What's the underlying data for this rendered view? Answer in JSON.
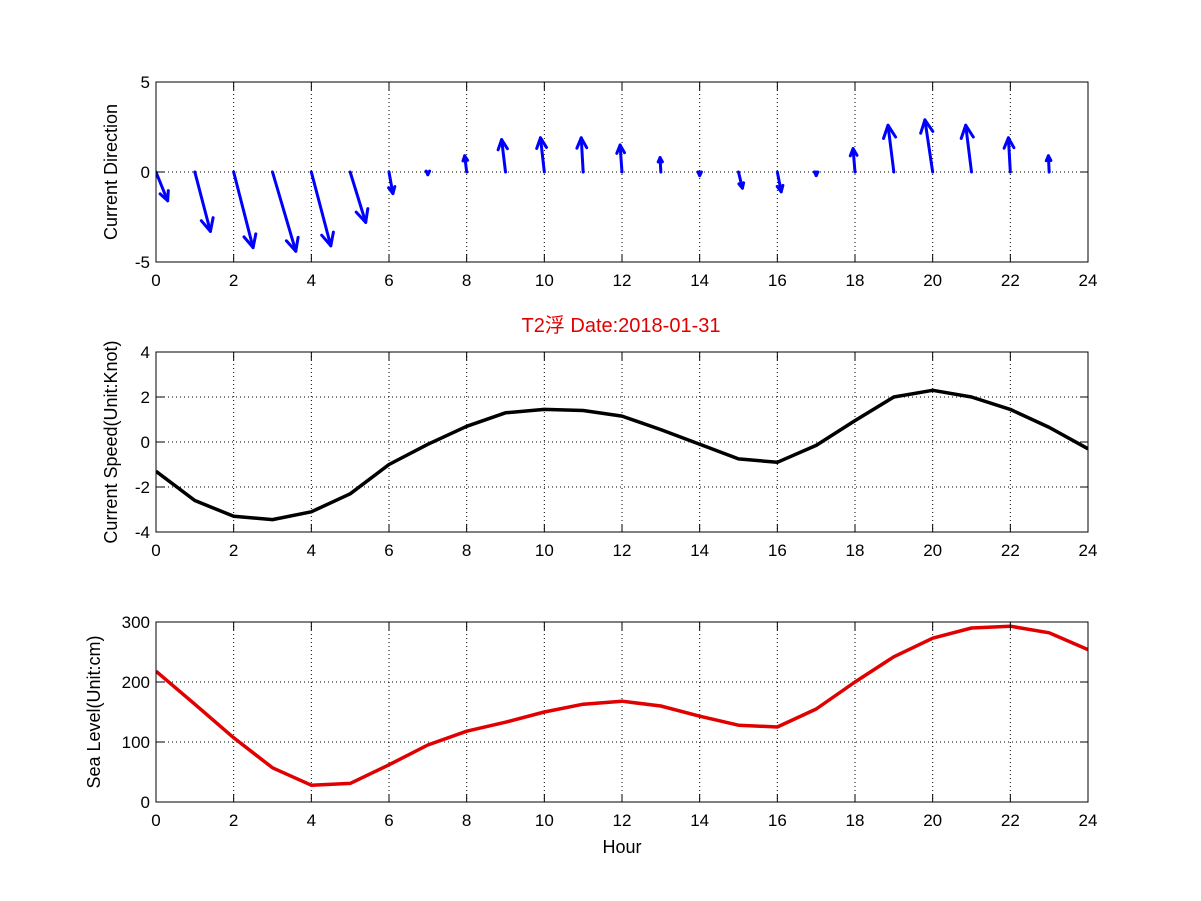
{
  "title": "T2浮    Date:2018-01-31",
  "colors": {
    "direction": "#0000ff",
    "speed": "#000000",
    "sea_level": "#e00000",
    "title": "#e00000"
  },
  "chart_data": [
    {
      "type": "quiver",
      "ylabel": "Current Direction",
      "xlabel": "",
      "xlim": [
        0,
        24
      ],
      "ylim": [
        -5,
        5
      ],
      "xticks": [
        0,
        2,
        4,
        6,
        8,
        10,
        12,
        14,
        16,
        18,
        20,
        22,
        24
      ],
      "yticks": [
        -5,
        0,
        5
      ],
      "grid": true,
      "vectors": [
        {
          "x": 0,
          "u": 0.3,
          "v": -1.6
        },
        {
          "x": 1,
          "u": 0.4,
          "v": -3.3
        },
        {
          "x": 2,
          "u": 0.5,
          "v": -4.2
        },
        {
          "x": 3,
          "u": 0.6,
          "v": -4.4
        },
        {
          "x": 4,
          "u": 0.5,
          "v": -4.1
        },
        {
          "x": 5,
          "u": 0.4,
          "v": -2.8
        },
        {
          "x": 6,
          "u": 0.1,
          "v": -1.2
        },
        {
          "x": 7,
          "u": 0.0,
          "v": -0.15
        },
        {
          "x": 8,
          "u": -0.05,
          "v": 0.9
        },
        {
          "x": 9,
          "u": -0.1,
          "v": 1.8
        },
        {
          "x": 10,
          "u": -0.1,
          "v": 1.9
        },
        {
          "x": 11,
          "u": -0.05,
          "v": 1.9
        },
        {
          "x": 12,
          "u": -0.05,
          "v": 1.5
        },
        {
          "x": 13,
          "u": -0.02,
          "v": 0.8
        },
        {
          "x": 14,
          "u": 0.0,
          "v": -0.2
        },
        {
          "x": 15,
          "u": 0.1,
          "v": -0.9
        },
        {
          "x": 16,
          "u": 0.1,
          "v": -1.1
        },
        {
          "x": 17,
          "u": 0.0,
          "v": -0.2
        },
        {
          "x": 18,
          "u": -0.05,
          "v": 1.3
        },
        {
          "x": 19,
          "u": -0.15,
          "v": 2.6
        },
        {
          "x": 20,
          "u": -0.2,
          "v": 2.9
        },
        {
          "x": 21,
          "u": -0.15,
          "v": 2.6
        },
        {
          "x": 22,
          "u": -0.05,
          "v": 1.9
        },
        {
          "x": 23,
          "u": -0.02,
          "v": 0.9
        }
      ]
    },
    {
      "type": "line",
      "ylabel": "Current Speed(Unit:Knot)",
      "xlabel": "",
      "xlim": [
        0,
        24
      ],
      "ylim": [
        -4,
        4
      ],
      "xticks": [
        0,
        2,
        4,
        6,
        8,
        10,
        12,
        14,
        16,
        18,
        20,
        22,
        24
      ],
      "yticks": [
        -4,
        -2,
        0,
        2,
        4
      ],
      "grid": true,
      "x": [
        0,
        1,
        2,
        3,
        4,
        5,
        6,
        7,
        8,
        9,
        10,
        11,
        12,
        13,
        14,
        15,
        16,
        17,
        18,
        19,
        20,
        21,
        22,
        23,
        24
      ],
      "y": [
        -1.3,
        -2.6,
        -3.3,
        -3.45,
        -3.1,
        -2.3,
        -1.0,
        -0.1,
        0.7,
        1.3,
        1.45,
        1.4,
        1.15,
        0.55,
        -0.1,
        -0.75,
        -0.9,
        -0.15,
        0.95,
        2.0,
        2.3,
        2.0,
        1.45,
        0.65,
        -0.3
      ]
    },
    {
      "type": "line",
      "ylabel": "Sea Level(Unit:cm)",
      "xlabel": "Hour",
      "xlim": [
        0,
        24
      ],
      "ylim": [
        0,
        300
      ],
      "xticks": [
        0,
        2,
        4,
        6,
        8,
        10,
        12,
        14,
        16,
        18,
        20,
        22,
        24
      ],
      "yticks": [
        0,
        100,
        200,
        300
      ],
      "grid": true,
      "x": [
        0,
        1,
        2,
        3,
        4,
        5,
        6,
        7,
        8,
        9,
        10,
        11,
        12,
        13,
        14,
        15,
        16,
        17,
        18,
        19,
        20,
        21,
        22,
        23,
        24
      ],
      "y": [
        218,
        163,
        107,
        57,
        28,
        31,
        62,
        95,
        118,
        133,
        150,
        163,
        168,
        160,
        143,
        128,
        125,
        155,
        200,
        242,
        273,
        290,
        293,
        282,
        254
      ]
    }
  ]
}
